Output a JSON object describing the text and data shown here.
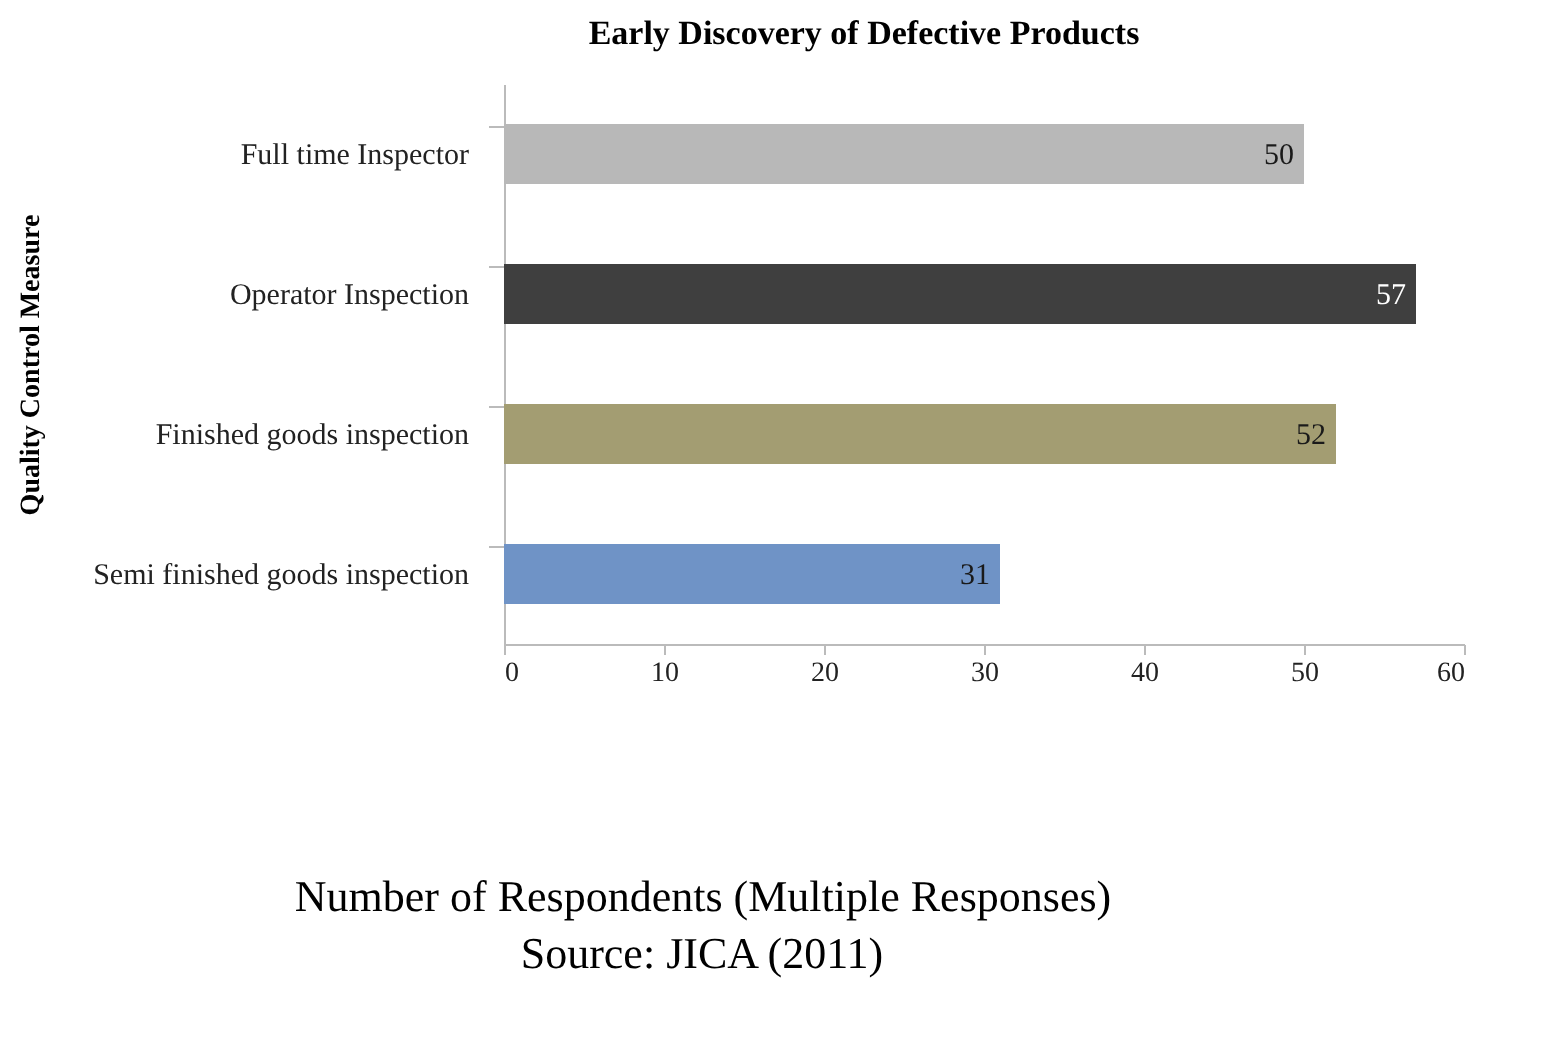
{
  "chart_data": {
    "type": "bar",
    "orientation": "horizontal",
    "title": "Early Discovery of Defective Products",
    "xlabel": "Number of Respondents (Multiple Responses)",
    "ylabel": "Quality Control Measure",
    "categories": [
      "Full time Inspector",
      "Operator Inspection",
      "Finished goods inspection",
      "Semi finished goods inspection"
    ],
    "values": [
      50,
      57,
      52,
      31
    ],
    "colors": [
      "#b8b8b8",
      "#3f3f3f",
      "#a39d72",
      "#6f93c6"
    ],
    "xlim": [
      0,
      60
    ],
    "xticks": [
      0,
      10,
      20,
      30,
      40,
      50,
      60
    ],
    "grid": false,
    "data_labels": true,
    "annotations": [
      "Source: JICA (2011)"
    ]
  }
}
